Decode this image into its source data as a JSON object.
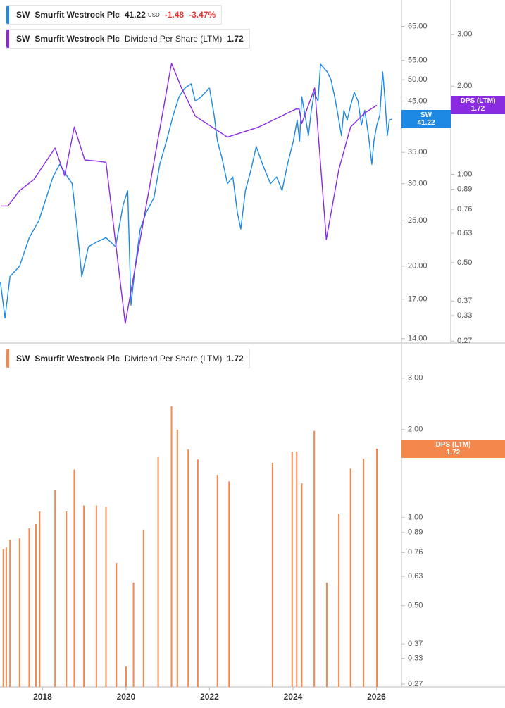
{
  "chart_data": [
    {
      "type": "line",
      "log": true,
      "xlim": [
        2016.98,
        2026.6
      ],
      "ylim": [
        13.7,
        74
      ],
      "y2lim": [
        0.266,
        3.93
      ],
      "yticks": [
        {
          "value": 14,
          "label": "14.00"
        },
        {
          "value": 17,
          "label": "17.00"
        },
        {
          "value": 20,
          "label": "20.00"
        },
        {
          "value": 25,
          "label": "25.00"
        },
        {
          "value": 30,
          "label": "30.00"
        },
        {
          "value": 35,
          "label": "35.00"
        },
        {
          "value": 45,
          "label": "45.00"
        },
        {
          "value": 50,
          "label": "50.00"
        },
        {
          "value": 55,
          "label": "55.00"
        },
        {
          "value": 65,
          "label": "65.00"
        }
      ],
      "y2ticks": [
        0.27,
        0.33,
        0.37,
        {
          "value": 0.5,
          "label": "0.50"
        },
        0.63,
        0.76,
        0.89,
        {
          "value": 1,
          "label": "1.00"
        },
        {
          "value": 2,
          "label": "2.00"
        },
        {
          "value": 3,
          "label": "3.00"
        }
      ],
      "series": [
        {
          "ticker": "SW",
          "name": "Smurfit Westrock Plc",
          "color": "#1e88e5",
          "last": 41.22,
          "badge": "SW",
          "currency": "USD",
          "change": -1.48,
          "change_pct": "-3.47%",
          "x": [
            2016.99,
            2017.1,
            2017.22,
            2017.45,
            2017.68,
            2017.91,
            2018.09,
            2018.25,
            2018.41,
            2018.6,
            2018.71,
            2018.83,
            2018.94,
            2019.1,
            2019.29,
            2019.52,
            2019.75,
            2019.93,
            2020.04,
            2020.12,
            2020.22,
            2020.34,
            2020.48,
            2020.67,
            2020.81,
            2020.97,
            2021.13,
            2021.27,
            2021.41,
            2021.56,
            2021.66,
            2021.8,
            2022.0,
            2022.11,
            2022.19,
            2022.3,
            2022.43,
            2022.56,
            2022.67,
            2022.75,
            2022.86,
            2022.99,
            2023.12,
            2023.27,
            2023.46,
            2023.61,
            2023.74,
            2023.87,
            2024.01,
            2024.1,
            2024.16,
            2024.21,
            2024.29,
            2024.37,
            2024.44,
            2024.51,
            2024.6,
            2024.66,
            2024.74,
            2024.82,
            2024.91,
            2025.0,
            2025.08,
            2025.16,
            2025.22,
            2025.3,
            2025.38,
            2025.47,
            2025.56,
            2025.64,
            2025.72,
            2025.81,
            2025.89,
            2025.94,
            2026.01,
            2026.08,
            2026.15,
            2026.2,
            2026.26,
            2026.31,
            2026.37
          ],
          "values": [
            18.5,
            15.5,
            19,
            20,
            23,
            25,
            28,
            31,
            33,
            31,
            30,
            24,
            19,
            22,
            22.5,
            23,
            22,
            27,
            29,
            16.5,
            20,
            24,
            26,
            28,
            33,
            37,
            42,
            46,
            48,
            49,
            45,
            46,
            48,
            42,
            37,
            34,
            30,
            31,
            26,
            24,
            29,
            32,
            36,
            33,
            30,
            31,
            29,
            33,
            37,
            41,
            37,
            46,
            42,
            38,
            43,
            47,
            45,
            54,
            53,
            52,
            50,
            46,
            42,
            38,
            43,
            41,
            44,
            47,
            45,
            40,
            43,
            38,
            33,
            37,
            40,
            42,
            52,
            46,
            38,
            41,
            41.22
          ]
        },
        {
          "ticker": "SW",
          "company": "Smurfit Westrock Plc",
          "name": "Dividend Per Share (LTM)",
          "color": "#8a2be2",
          "axis": "y2",
          "last": 1.72,
          "badge": "DPS (LTM)",
          "x": [
            2016.99,
            2017.17,
            2017.45,
            2017.79,
            2018.3,
            2018.53,
            2018.76,
            2019.01,
            2019.29,
            2019.52,
            2019.98,
            2021.09,
            2021.33,
            2021.66,
            2022.43,
            2023.18,
            2024.07,
            2024.15,
            2024.21,
            2024.52,
            2024.8,
            2025.1,
            2025.38,
            2025.72,
            2026.01
          ],
          "values": [
            0.78,
            0.78,
            0.88,
            0.96,
            1.23,
            0.99,
            1.45,
            1.12,
            1.11,
            1.1,
            0.31,
            2.39,
            1.97,
            1.58,
            1.34,
            1.45,
            1.67,
            1.67,
            1.49,
            1.97,
            0.6,
            1.04,
            1.45,
            1.62,
            1.72
          ]
        }
      ]
    },
    {
      "type": "bar",
      "log": true,
      "xlim": [
        2016.98,
        2026.6
      ],
      "xticks": [
        2018,
        2020,
        2022,
        2024,
        2026
      ],
      "ylim": [
        0.264,
        3.93
      ],
      "yticks": [
        0.27,
        0.33,
        0.37,
        {
          "value": 0.5,
          "label": "0.50"
        },
        0.63,
        0.76,
        0.89,
        {
          "value": 1,
          "label": "1.00"
        },
        {
          "value": 2,
          "label": "2.00"
        },
        {
          "value": 3,
          "label": "3.00"
        }
      ],
      "series": [
        {
          "ticker": "SW",
          "company": "Smurfit Westrock Plc",
          "name": "Dividend Per Share (LTM)",
          "color": "#f4874b",
          "last": 1.72,
          "badge": "DPS (LTM)",
          "x": [
            2017.06,
            2017.13,
            2017.22,
            2017.45,
            2017.68,
            2017.84,
            2017.93,
            2018.3,
            2018.57,
            2018.76,
            2018.99,
            2019.29,
            2019.52,
            2019.77,
            2020.0,
            2020.18,
            2020.42,
            2020.77,
            2021.09,
            2021.23,
            2021.49,
            2021.72,
            2022.19,
            2022.47,
            2023.51,
            2023.98,
            2024.09,
            2024.21,
            2024.51,
            2024.81,
            2025.1,
            2025.38,
            2025.69,
            2026.01
          ],
          "values": [
            0.78,
            0.79,
            0.84,
            0.85,
            0.92,
            0.95,
            1.05,
            1.24,
            1.05,
            1.46,
            1.1,
            1.1,
            1.09,
            0.7,
            0.31,
            0.6,
            0.91,
            1.62,
            2.4,
            2.0,
            1.71,
            1.58,
            1.4,
            1.33,
            1.54,
            1.68,
            1.68,
            1.31,
            1.98,
            0.6,
            1.03,
            1.47,
            1.59,
            1.72
          ]
        }
      ]
    }
  ]
}
